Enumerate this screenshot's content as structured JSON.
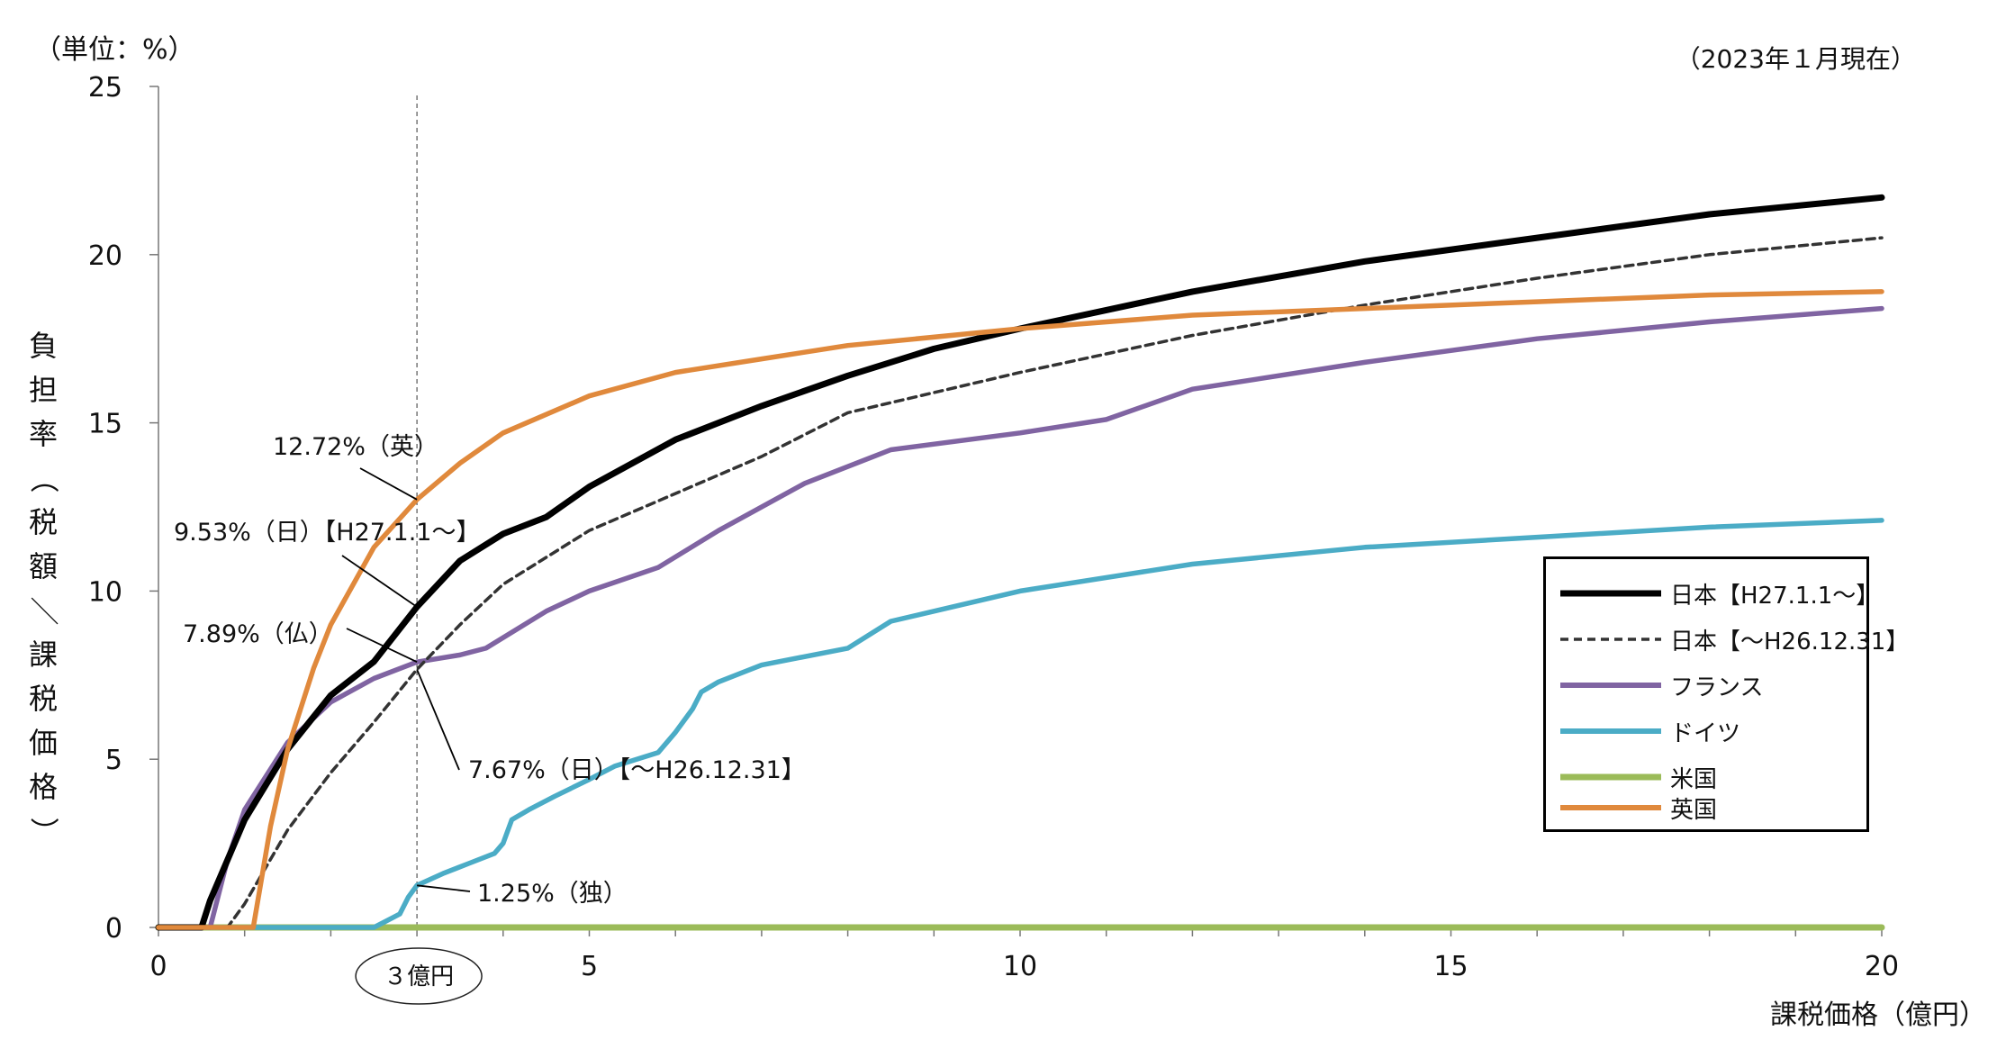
{
  "header": {
    "unit_label": "（単位：%）",
    "as_of": "（2023年１月現在）"
  },
  "axes": {
    "ylabel_chars": [
      "負",
      "担",
      "率",
      "（",
      "税",
      "額",
      "／",
      "課",
      "税",
      "価",
      "格",
      "）"
    ],
    "xlabel": "課税価格（億円）",
    "x_ticks": [
      "0",
      "5",
      "10",
      "15",
      "20"
    ],
    "y_ticks": [
      "0",
      "5",
      "10",
      "15",
      "20",
      "25"
    ],
    "x_marker_label": "３億円"
  },
  "colors": {
    "japan_new": "#000000",
    "japan_old": "#333333",
    "france": "#8064A2",
    "germany": "#4BACC6",
    "usa": "#9BBB59",
    "uk": "#E0893C"
  },
  "chart_data": {
    "type": "line",
    "xlabel": "課税価格（億円）",
    "ylabel": "負担率（税額／課税価格）",
    "unit": "%",
    "xlim": [
      0,
      20
    ],
    "ylim": [
      0,
      25
    ],
    "x_tick_step": 5,
    "x_minor_step": 1,
    "y_tick_step": 5,
    "grid": false,
    "legend_position": "right",
    "reference_line": {
      "x": 3,
      "label": "３億円",
      "style": "dashed"
    },
    "series": [
      {
        "name": "日本【H27.1.1～】",
        "key": "japan_new",
        "style": "solid",
        "x": [
          0,
          0.5,
          0.6,
          0.8,
          1.0,
          1.5,
          2.0,
          2.5,
          3.0,
          3.5,
          4.0,
          4.5,
          5.0,
          6.0,
          7.0,
          8.0,
          9.0,
          10.0,
          12.0,
          14.0,
          16.0,
          18.0,
          20.0
        ],
        "y": [
          0,
          0,
          0.8,
          2.0,
          3.2,
          5.3,
          6.9,
          7.9,
          9.53,
          10.9,
          11.7,
          12.2,
          13.1,
          14.5,
          15.5,
          16.4,
          17.2,
          17.8,
          18.9,
          19.8,
          20.5,
          21.2,
          21.7
        ]
      },
      {
        "name": "日本【～H26.12.31】",
        "key": "japan_old",
        "style": "dashed",
        "x": [
          0,
          0.8,
          1.0,
          1.5,
          2.0,
          2.5,
          3.0,
          3.5,
          4.0,
          4.5,
          5.0,
          6.0,
          7.0,
          8.0,
          10.0,
          12.0,
          14.0,
          16.0,
          18.0,
          20.0
        ],
        "y": [
          0,
          0,
          0.7,
          2.9,
          4.6,
          6.1,
          7.67,
          9.0,
          10.2,
          11.0,
          11.8,
          12.9,
          14.0,
          15.3,
          16.5,
          17.6,
          18.5,
          19.3,
          20.0,
          20.5
        ]
      },
      {
        "name": "フランス",
        "key": "france",
        "style": "solid",
        "x": [
          0,
          0.6,
          0.7,
          0.8,
          1.0,
          1.5,
          2.0,
          2.5,
          3.0,
          3.5,
          3.8,
          4.5,
          5.0,
          5.8,
          6.5,
          7.5,
          8.5,
          10.0,
          11.0,
          12.0,
          14.0,
          16.0,
          18.0,
          20.0
        ],
        "y": [
          0,
          0,
          1.0,
          2.0,
          3.5,
          5.5,
          6.7,
          7.4,
          7.89,
          8.1,
          8.3,
          9.4,
          10.0,
          10.7,
          11.8,
          13.2,
          14.2,
          14.7,
          15.1,
          16.0,
          16.8,
          17.5,
          18.0,
          18.4
        ]
      },
      {
        "name": "ドイツ",
        "key": "germany",
        "style": "solid",
        "x": [
          0,
          2.5,
          2.8,
          2.9,
          3.0,
          3.3,
          3.6,
          3.9,
          4.0,
          4.1,
          4.3,
          4.6,
          5.0,
          5.3,
          5.8,
          6.0,
          6.2,
          6.3,
          6.5,
          7.0,
          8.0,
          8.5,
          9.0,
          10.0,
          12.0,
          14.0,
          16.0,
          18.0,
          20.0
        ],
        "y": [
          0,
          0,
          0.4,
          0.9,
          1.25,
          1.6,
          1.9,
          2.2,
          2.5,
          3.2,
          3.5,
          3.9,
          4.4,
          4.8,
          5.2,
          5.8,
          6.5,
          7.0,
          7.3,
          7.8,
          8.3,
          9.1,
          9.4,
          10.0,
          10.8,
          11.3,
          11.6,
          11.9,
          12.1
        ]
      },
      {
        "name": "米国",
        "key": "usa",
        "style": "solid",
        "x": [
          0,
          20
        ],
        "y": [
          0,
          0
        ]
      },
      {
        "name": "英国",
        "key": "uk",
        "style": "solid",
        "x": [
          0,
          1.1,
          1.3,
          1.5,
          1.8,
          2.0,
          2.5,
          3.0,
          3.5,
          4.0,
          5.0,
          6.0,
          7.0,
          8.0,
          10.0,
          12.0,
          14.0,
          16.0,
          18.0,
          20.0
        ],
        "y": [
          0,
          0,
          3.0,
          5.3,
          7.7,
          9.0,
          11.3,
          12.72,
          13.8,
          14.7,
          15.8,
          16.5,
          16.9,
          17.3,
          17.8,
          18.2,
          18.4,
          18.6,
          18.8,
          18.9
        ]
      }
    ],
    "annotations": [
      {
        "key": "uk_at_3",
        "text": "12.72%（英）",
        "x": 3,
        "y": 12.72
      },
      {
        "key": "japan_new_at_3",
        "text": "9.53%（日）【H27.1.1～】",
        "x": 3,
        "y": 9.53
      },
      {
        "key": "france_at_3",
        "text": "7.89%（仏）",
        "x": 3,
        "y": 7.89
      },
      {
        "key": "japan_old_at_3",
        "text": "7.67%（日）【～H26.12.31】",
        "x": 3,
        "y": 7.67
      },
      {
        "key": "germany_at_3",
        "text": "1.25%（独）",
        "x": 3,
        "y": 1.25
      }
    ]
  }
}
